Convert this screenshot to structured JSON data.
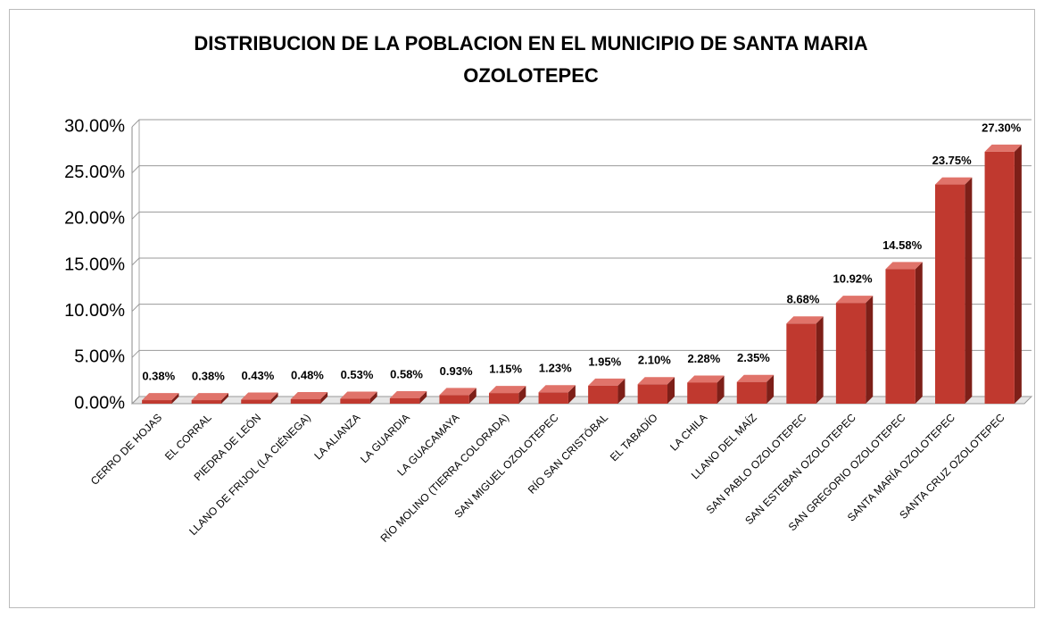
{
  "chart_data": {
    "type": "bar",
    "title": "DISTRIBUCION DE LA POBLACION EN EL MUNICIPIO DE SANTA MARIA OZOLOTEPEC",
    "categories": [
      "CERRO DE HOJAS",
      "EL CORRAL",
      "PIEDRA DE LEÓN",
      "LLANO DE FRIJOL (LA CIÉNEGA)",
      "LA ALIANZA",
      "LA GUARDIA",
      "LA GUACAMAYA",
      "RÍO MOLINO (TIERRA COLORADA)",
      "SAN MIGUEL OZOLOTEPEC",
      "RÍO SAN CRISTÓBAL",
      "EL TABADÍO",
      "LA CHILA",
      "LLANO DEL MAÍZ",
      "SAN PABLO OZOLOTEPEC",
      "SAN ESTEBAN OZOLOTEPEC",
      "SAN GREGORIO OZOLOTEPEC",
      "SANTA MARÍA OZOLOTEPEC",
      "SANTA CRUZ OZOLOTEPEC"
    ],
    "values": [
      0.38,
      0.38,
      0.43,
      0.48,
      0.53,
      0.58,
      0.93,
      1.15,
      1.23,
      1.95,
      2.1,
      2.28,
      2.35,
      8.68,
      10.92,
      14.58,
      23.75,
      27.3
    ],
    "value_labels": [
      "0.38%",
      "0.38%",
      "0.43%",
      "0.48%",
      "0.53%",
      "0.58%",
      "0.93%",
      "1.15%",
      "1.23%",
      "1.95%",
      "2.10%",
      "2.28%",
      "2.35%",
      "8.68%",
      "10.92%",
      "14.58%",
      "23.75%",
      "27.30%"
    ],
    "color": "#c0392f",
    "ylim": [
      0,
      30
    ],
    "yticks": [
      {
        "value": 0,
        "label": "0.00%"
      },
      {
        "value": 5,
        "label": "5.00%"
      },
      {
        "value": 10,
        "label": "10.00%"
      },
      {
        "value": 15,
        "label": "15.00%"
      },
      {
        "value": 20,
        "label": "20.00%"
      },
      {
        "value": 25,
        "label": "25.00%"
      },
      {
        "value": 30,
        "label": "30.00%"
      }
    ],
    "grid": true
  }
}
